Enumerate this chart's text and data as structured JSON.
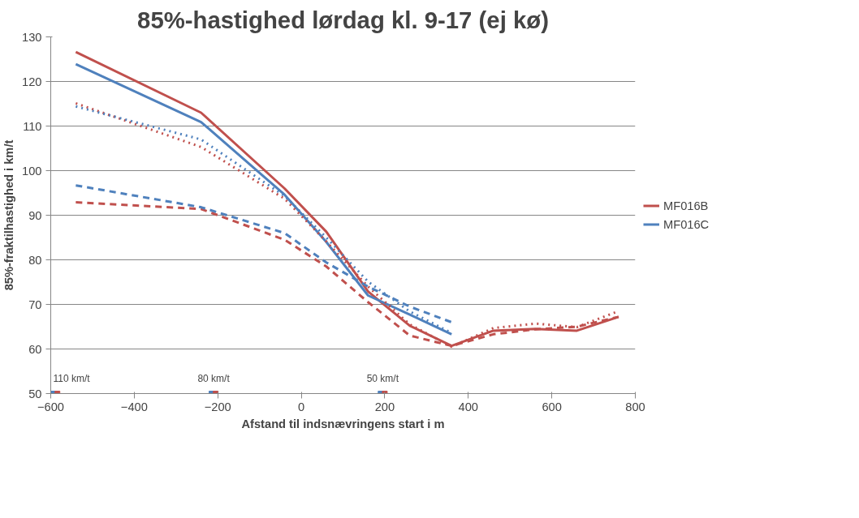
{
  "chart_data": {
    "type": "line",
    "title": "85%-hastighed lørdag kl. 9-17 (ej kø)",
    "xlabel": "Afstand til indsnævringens start i m",
    "ylabel": "85%-fraktilhastighed i km/t",
    "x": [
      -540,
      -240,
      -40,
      60,
      160,
      260,
      360,
      460,
      560,
      660,
      760
    ],
    "series": [
      {
        "name": "MF016B",
        "color": "#c0504d",
        "line_style": "solid",
        "values": [
          126.6,
          113.0,
          96.0,
          86.3,
          72.9,
          65.2,
          60.7,
          64.1,
          64.5,
          64.1,
          67.2
        ]
      },
      {
        "name": "MF016C",
        "color": "#4f81bd",
        "line_style": "solid",
        "values": [
          123.9,
          110.9,
          94.6,
          84.0,
          72.0,
          67.7,
          63.3,
          null,
          null,
          null,
          null
        ]
      },
      {
        "color": "#c0504d",
        "line_style": "dotted",
        "values": [
          115.1,
          105.3,
          93.7,
          84.1,
          74.0,
          65.5,
          60.5,
          64.7,
          65.7,
          64.9,
          68.5
        ]
      },
      {
        "color": "#4f81bd",
        "line_style": "dotted",
        "values": [
          114.4,
          107.0,
          94.3,
          85.0,
          75.1,
          68.4,
          63.6,
          null,
          null,
          null,
          null
        ]
      },
      {
        "color": "#c0504d",
        "line_style": "dashed",
        "values": [
          92.9,
          91.4,
          84.5,
          78.5,
          70.5,
          63.0,
          60.7,
          63.3,
          64.4,
          65.0,
          67.2
        ]
      },
      {
        "color": "#4f81bd",
        "line_style": "dashed",
        "values": [
          96.7,
          91.8,
          86.0,
          79.4,
          74.0,
          69.5,
          66.0,
          null,
          null,
          null,
          null
        ]
      },
      {
        "type": "scatter",
        "marker": "square",
        "color": "#4f81bd",
        "x": [
          -594,
          -215,
          190
        ],
        "values": [
          50,
          50,
          50
        ]
      },
      {
        "type": "scatter",
        "marker": "square",
        "color": "#c0504d",
        "x": [
          -584,
          -205,
          200
        ],
        "values": [
          50,
          50,
          50
        ]
      }
    ],
    "annotations": [
      {
        "text": "110 km/t",
        "x": -600,
        "y": 50
      },
      {
        "text": "80 km/t",
        "x": -210,
        "y": 50
      },
      {
        "text": "50 km/t",
        "x": 195,
        "y": 50
      }
    ],
    "xlim": [
      -600,
      800
    ],
    "xticks": [
      -600,
      -400,
      -200,
      0,
      200,
      400,
      600,
      800
    ],
    "ylim": [
      50,
      130
    ],
    "yticks": [
      50,
      60,
      70,
      80,
      90,
      100,
      110,
      120,
      130
    ],
    "grid": "y",
    "legend": "right",
    "marker": "none"
  }
}
